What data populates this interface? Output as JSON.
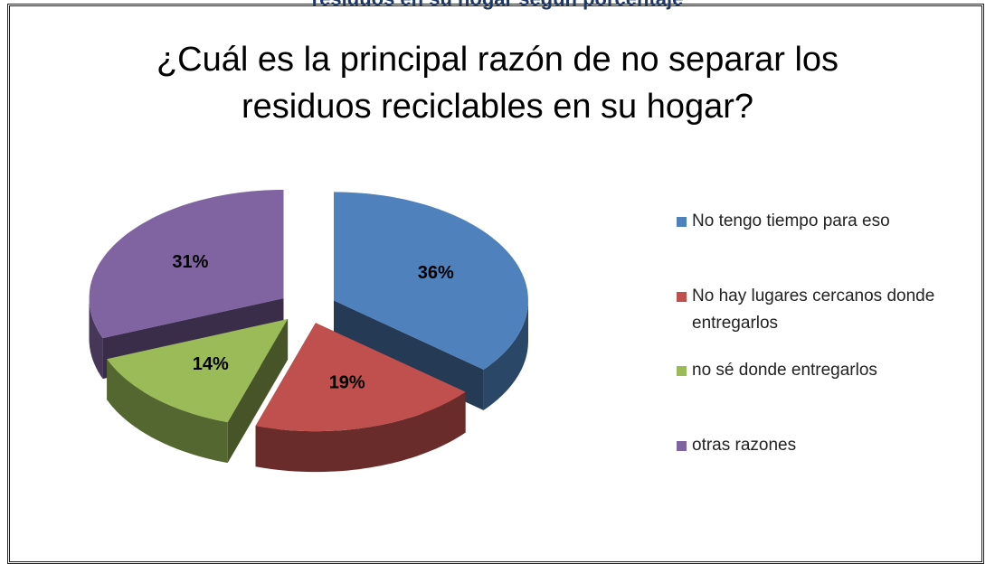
{
  "chart_data": {
    "type": "pie",
    "caption": "residuos en su hogar según porcentaje",
    "title": "¿Cuál es la principal razón de no separar los residuos reciclables en su hogar?",
    "categories": [
      "No tengo tiempo para eso",
      "No hay lugares cercanos donde entregarlos",
      "no sé donde entregarlos",
      "otras razones"
    ],
    "values": [
      36,
      19,
      14,
      31
    ],
    "value_labels": [
      "36%",
      "19%",
      "14%",
      "31%"
    ],
    "colors": [
      "#4f81bd",
      "#c0504d",
      "#9bbb59",
      "#8064a2"
    ],
    "legend": "right"
  }
}
